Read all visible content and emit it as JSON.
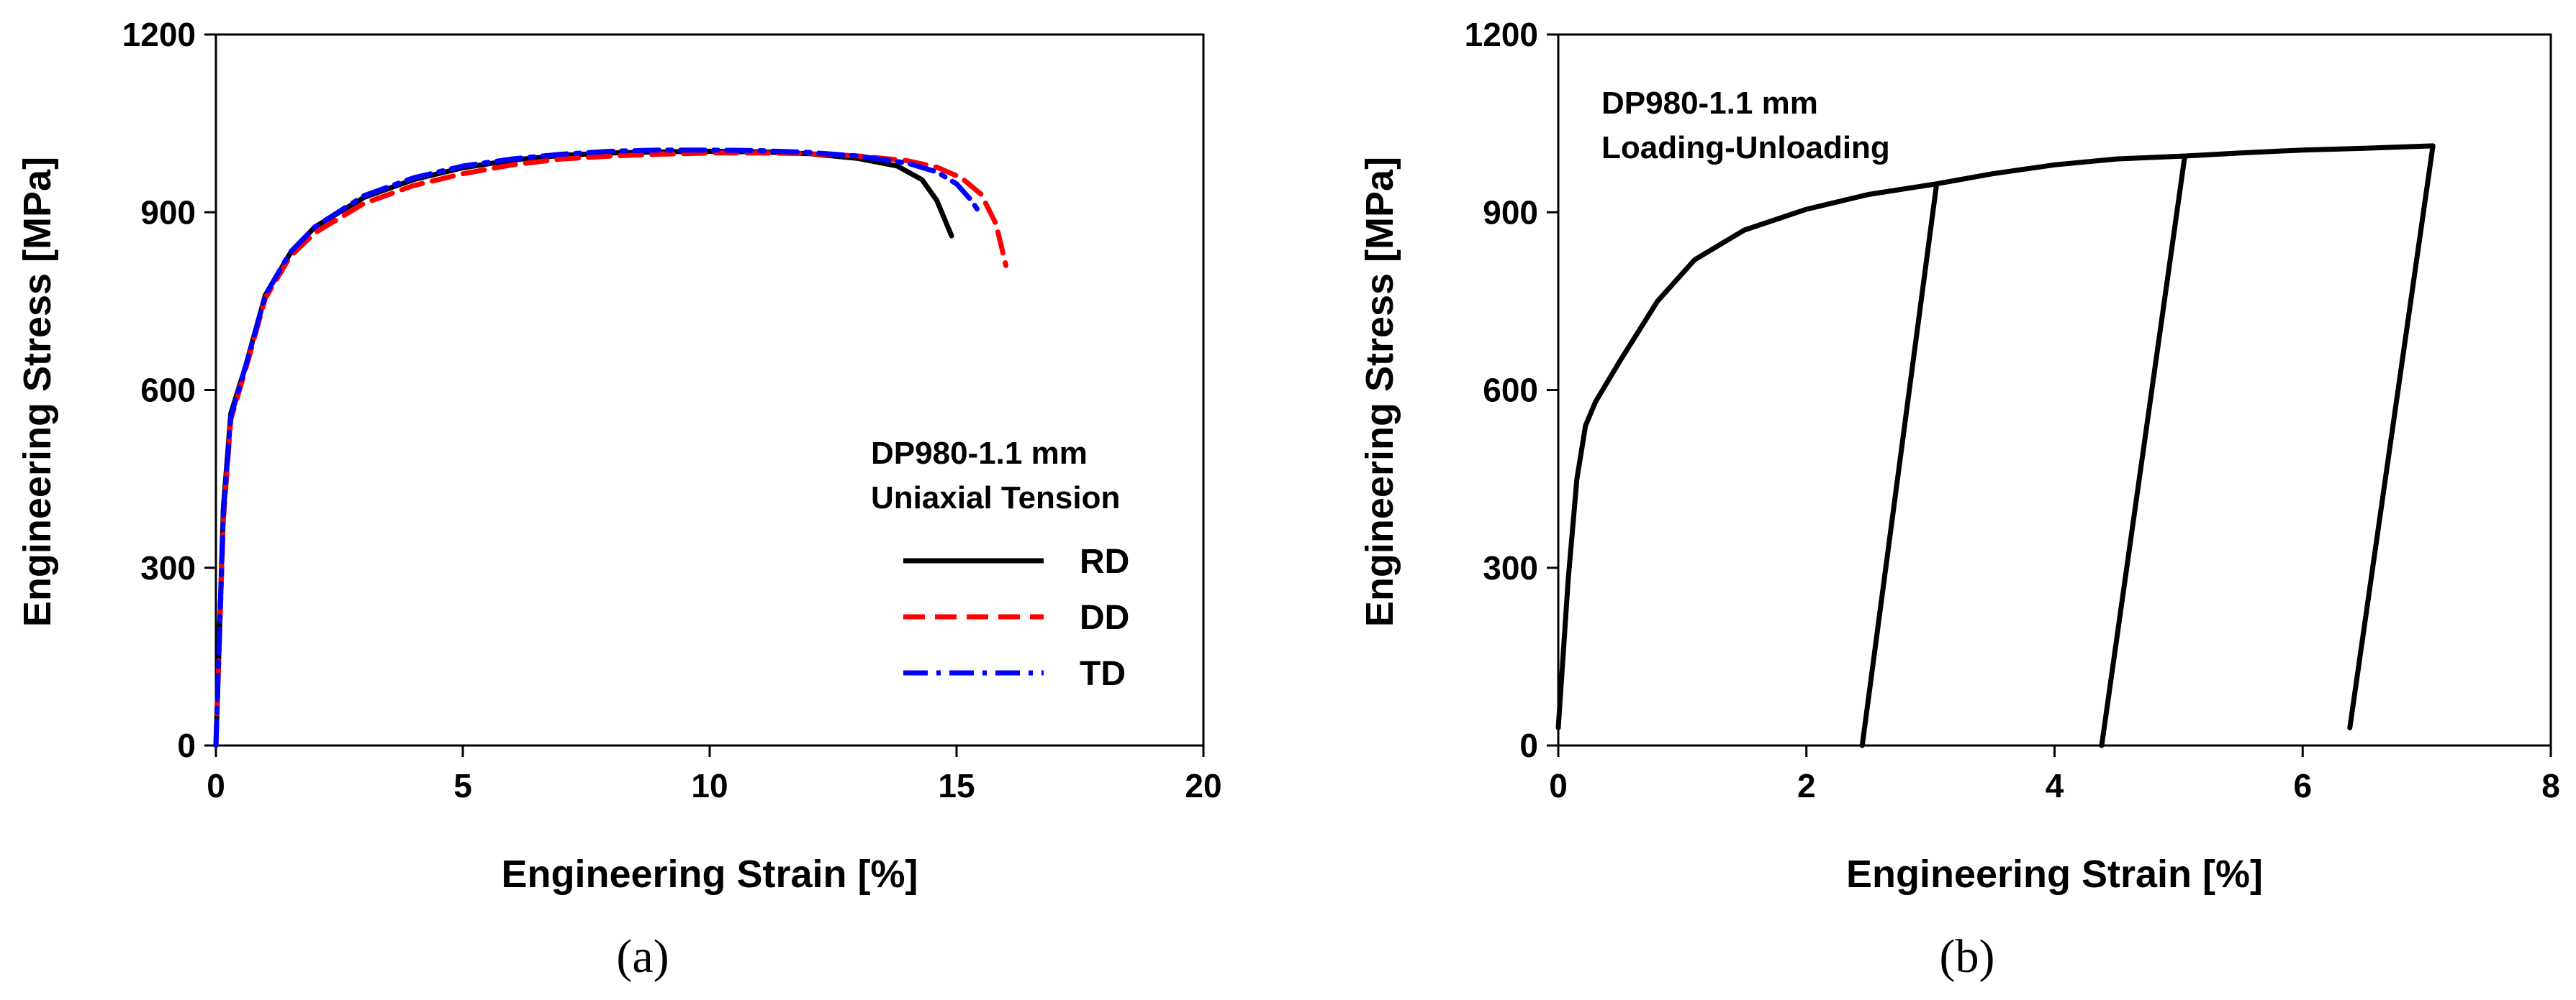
{
  "chart_data": [
    {
      "type": "line",
      "panel": "a",
      "caption": "(a)",
      "xlabel": "Engineering Strain [%]",
      "ylabel": "Engineering Stress [MPa]",
      "xlim": [
        0,
        20
      ],
      "ylim": [
        0,
        1200
      ],
      "xticks": [
        "0",
        "5",
        "10",
        "15",
        "20"
      ],
      "yticks": [
        "0",
        "300",
        "600",
        "900",
        "1200"
      ],
      "xtick_values": [
        0,
        5,
        10,
        15,
        20
      ],
      "ytick_values": [
        0,
        300,
        600,
        900,
        1200
      ],
      "annotation": [
        "DP980-1.1 mm",
        "Uniaxial Tension"
      ],
      "legend_position": "right",
      "series": [
        {
          "name": "RD",
          "color": "#000000",
          "style": "solid",
          "x": [
            0,
            0.15,
            0.3,
            0.6,
            1.0,
            1.5,
            2.0,
            3.0,
            4.0,
            5.0,
            6.0,
            7.0,
            8.0,
            9.0,
            10.0,
            11.0,
            12.0,
            13.0,
            13.8,
            14.3,
            14.6,
            14.9
          ],
          "y": [
            0,
            400,
            560,
            640,
            760,
            830,
            875,
            925,
            955,
            975,
            988,
            996,
            1000,
            1002,
            1003,
            1002,
            999,
            991,
            978,
            955,
            920,
            860
          ]
        },
        {
          "name": "DD",
          "color": "#ff0000",
          "style": "dashed",
          "x": [
            0,
            0.15,
            0.3,
            0.6,
            1.0,
            1.5,
            2.0,
            3.0,
            4.0,
            5.0,
            6.0,
            7.0,
            8.0,
            9.0,
            10.0,
            11.0,
            12.0,
            13.0,
            14.0,
            14.6,
            15.1,
            15.5,
            15.8,
            16.0
          ],
          "y": [
            0,
            380,
            550,
            635,
            755,
            825,
            865,
            915,
            945,
            965,
            980,
            990,
            995,
            998,
            1000,
            1000,
            999,
            995,
            987,
            976,
            958,
            930,
            880,
            810
          ]
        },
        {
          "name": "TD",
          "color": "#0000ff",
          "style": "dashdot",
          "x": [
            0,
            0.15,
            0.3,
            0.6,
            1.0,
            1.5,
            2.0,
            3.0,
            4.0,
            5.0,
            6.0,
            7.0,
            8.0,
            9.0,
            10.0,
            11.0,
            12.0,
            13.0,
            14.0,
            14.6,
            15.0,
            15.3,
            15.5
          ],
          "y": [
            0,
            390,
            555,
            640,
            760,
            832,
            875,
            928,
            958,
            978,
            990,
            998,
            1003,
            1005,
            1005,
            1004,
            1001,
            995,
            983,
            968,
            948,
            920,
            895
          ]
        }
      ]
    },
    {
      "type": "line",
      "panel": "b",
      "caption": "(b)",
      "xlabel": "Engineering Strain [%]",
      "ylabel": "Engineering Stress [MPa]",
      "xlim": [
        0,
        8
      ],
      "ylim": [
        0,
        1200
      ],
      "xticks": [
        "0",
        "2",
        "4",
        "6",
        "8"
      ],
      "yticks": [
        "0",
        "300",
        "600",
        "900",
        "1200"
      ],
      "xtick_values": [
        0,
        2,
        4,
        6,
        8
      ],
      "ytick_values": [
        0,
        300,
        600,
        900,
        1200
      ],
      "annotation": [
        "DP980-1.1 mm",
        "Loading-Unloading"
      ],
      "series": [
        {
          "name": "Loading-Unloading",
          "color": "#000000",
          "style": "solid",
          "x": [
            0,
            0.08,
            0.15,
            0.22,
            0.3,
            0.5,
            0.8,
            1.1,
            1.5,
            2.0,
            2.5,
            3.05,
            2.45,
            2.45,
            3.05,
            3.5,
            4.0,
            4.5,
            5.05,
            4.38,
            4.38,
            5.05,
            5.5,
            6.0,
            6.5,
            7.05,
            6.38,
            6.38,
            7.05
          ],
          "y": [
            30,
            280,
            450,
            540,
            580,
            650,
            750,
            820,
            870,
            905,
            930,
            948,
            0,
            0,
            948,
            965,
            980,
            990,
            995,
            0,
            0,
            995,
            1000,
            1005,
            1008,
            1012,
            30,
            30,
            1012
          ]
        }
      ]
    }
  ]
}
